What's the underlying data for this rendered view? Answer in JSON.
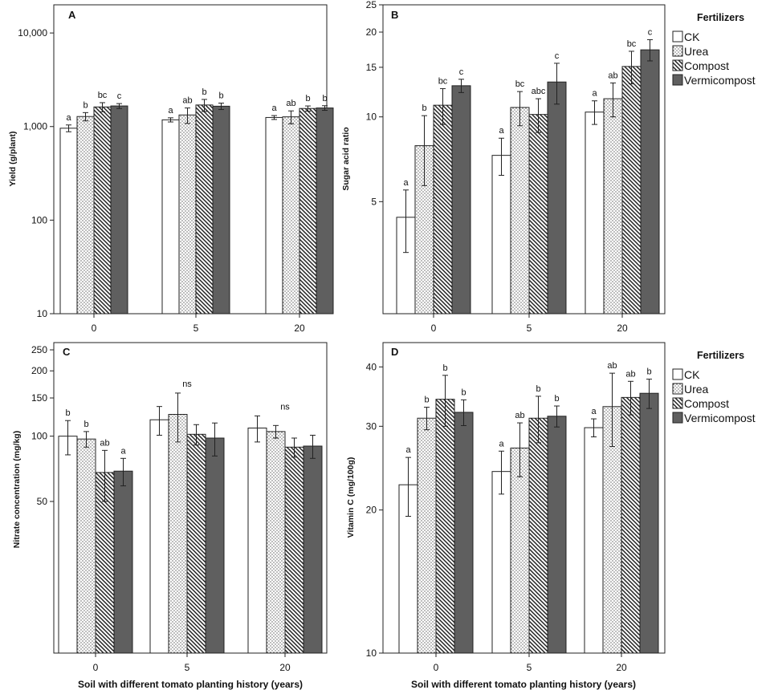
{
  "figure": {
    "xlabel": "Soil with different tomato planting history (years)"
  },
  "legend": {
    "title": "Fertilizers",
    "entries": [
      {
        "label": "CK",
        "pattern": "white"
      },
      {
        "label": "Urea",
        "pattern": "dots"
      },
      {
        "label": "Compost",
        "pattern": "hatch"
      },
      {
        "label": "Vermicompost",
        "pattern": "dark"
      }
    ]
  },
  "chart_data": [
    {
      "panel": "A",
      "type": "bar",
      "scale": "log",
      "ylabel": "Yield (g/plant)",
      "ylim": [
        10,
        20000
      ],
      "yticks": [
        10,
        100,
        1000,
        10000
      ],
      "ytick_labels": [
        "10",
        "100",
        "1,000",
        "10,000"
      ],
      "categories": [
        "0",
        "5",
        "20"
      ],
      "series": [
        {
          "name": "CK",
          "values": [
            960,
            1180,
            1250
          ],
          "err": [
            80,
            60,
            60
          ],
          "letters": [
            "a",
            "a",
            "a"
          ]
        },
        {
          "name": "Urea",
          "values": [
            1280,
            1330,
            1270
          ],
          "err": [
            130,
            250,
            200
          ],
          "letters": [
            "b",
            "ab",
            "ab"
          ]
        },
        {
          "name": "Compost",
          "values": [
            1620,
            1700,
            1560
          ],
          "err": [
            180,
            250,
            100
          ],
          "letters": [
            "bc",
            "b",
            "b"
          ]
        },
        {
          "name": "Vermicompost",
          "values": [
            1660,
            1650,
            1580
          ],
          "err": [
            100,
            130,
            90
          ],
          "letters": [
            "c",
            "b",
            "b"
          ]
        }
      ]
    },
    {
      "panel": "B",
      "type": "bar",
      "scale": "log",
      "ylabel": "Sugar acid ratio",
      "ylim": [
        2,
        25
      ],
      "yticks": [
        5,
        10,
        15,
        20,
        25
      ],
      "ytick_labels": [
        "5",
        "10",
        "15",
        "20",
        "25"
      ],
      "categories": [
        "0",
        "5",
        "20"
      ],
      "series": [
        {
          "name": "CK",
          "values": [
            4.4,
            7.3,
            10.4
          ],
          "err": [
            1.1,
            1.1,
            1.0
          ],
          "letters": [
            "a",
            "a",
            "a"
          ]
        },
        {
          "name": "Urea",
          "values": [
            7.9,
            10.8,
            11.6
          ],
          "err": [
            2.2,
            1.5,
            1.6
          ],
          "letters": [
            "b",
            "bc",
            "ab"
          ]
        },
        {
          "name": "Compost",
          "values": [
            11.0,
            10.2,
            15.1
          ],
          "err": [
            1.6,
            1.4,
            2.0
          ],
          "letters": [
            "bc",
            "abc",
            "bc"
          ]
        },
        {
          "name": "Vermicompost",
          "values": [
            12.9,
            13.3,
            17.3
          ],
          "err": [
            0.7,
            2.2,
            1.5
          ],
          "letters": [
            "c",
            "c",
            "c"
          ]
        }
      ]
    },
    {
      "panel": "C",
      "type": "bar",
      "scale": "log",
      "ylabel": "Nitrate concentration (mg/kg)",
      "ylim": [
        10,
        270
      ],
      "yticks": [
        50,
        100,
        150,
        200,
        250
      ],
      "ytick_labels": [
        "50",
        "100",
        "150",
        "200",
        "250"
      ],
      "categories": [
        "0",
        "5",
        "20"
      ],
      "series": [
        {
          "name": "CK",
          "values": [
            100,
            119,
            109
          ],
          "err": [
            18,
            18,
            15
          ],
          "letters": [
            "b",
            "",
            ""
          ]
        },
        {
          "name": "Urea",
          "values": [
            97,
            126,
            105
          ],
          "err": [
            8,
            32,
            7
          ],
          "letters": [
            "b",
            "",
            ""
          ]
        },
        {
          "name": "Compost",
          "values": [
            68,
            102,
            89
          ],
          "err": [
            18,
            11,
            9
          ],
          "letters": [
            "ab",
            "",
            ""
          ]
        },
        {
          "name": "Vermicompost",
          "values": [
            69,
            98,
            90
          ],
          "err": [
            10,
            17,
            11
          ],
          "letters": [
            "a",
            "",
            ""
          ]
        }
      ],
      "group_labels": [
        "",
        "ns",
        "ns"
      ]
    },
    {
      "panel": "D",
      "type": "bar",
      "scale": "log",
      "ylabel": "Vitamin C (mg/100g)",
      "ylim": [
        10,
        45
      ],
      "yticks": [
        10,
        20,
        30,
        40
      ],
      "ytick_labels": [
        "10",
        "20",
        "30",
        "40"
      ],
      "categories": [
        "0",
        "5",
        "20"
      ],
      "series": [
        {
          "name": "CK",
          "values": [
            22.6,
            24.1,
            29.8
          ],
          "err": [
            3.2,
            2.5,
            1.3
          ],
          "letters": [
            "a",
            "a",
            "a"
          ]
        },
        {
          "name": "Urea",
          "values": [
            31.2,
            27.0,
            33.0
          ],
          "err": [
            1.7,
            3.5,
            5.8
          ],
          "letters": [
            "b",
            "ab",
            "ab"
          ]
        },
        {
          "name": "Compost",
          "values": [
            34.2,
            31.2,
            34.5
          ],
          "err": [
            4.2,
            3.5,
            2.8
          ],
          "letters": [
            "b",
            "b",
            "ab"
          ]
        },
        {
          "name": "Vermicompost",
          "values": [
            32.1,
            31.5,
            35.2
          ],
          "err": [
            2.0,
            1.6,
            2.5
          ],
          "letters": [
            "b",
            "b",
            "b"
          ]
        }
      ]
    }
  ]
}
